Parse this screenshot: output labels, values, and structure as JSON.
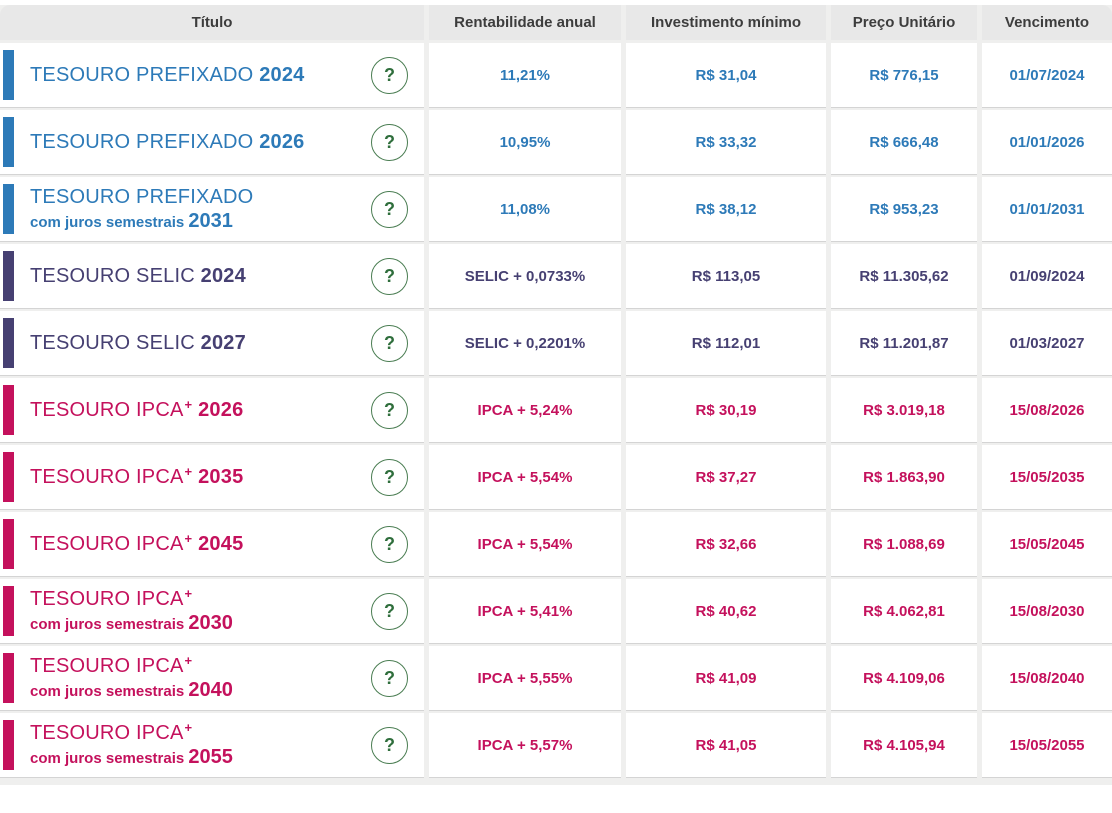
{
  "table": {
    "columns": [
      "Título",
      "Rentabilidade anual",
      "Investimento mínimo",
      "Preço Unitário",
      "Vencimento"
    ],
    "help_symbol": "?",
    "help_color": "#2f6e3c",
    "group_colors": {
      "prefixado": "#2d7ab8",
      "selic": "#464072",
      "ipca": "#c4115c"
    },
    "rows": [
      {
        "group": "prefixado",
        "name": "TESOURO PREFIXADO",
        "sup": "",
        "sub": "",
        "year": "2024",
        "rate": "11,21%",
        "min_investment": "R$ 31,04",
        "unit_price": "R$ 776,15",
        "maturity": "01/07/2024"
      },
      {
        "group": "prefixado",
        "name": "TESOURO PREFIXADO",
        "sup": "",
        "sub": "",
        "year": "2026",
        "rate": "10,95%",
        "min_investment": "R$ 33,32",
        "unit_price": "R$ 666,48",
        "maturity": "01/01/2026"
      },
      {
        "group": "prefixado",
        "name": "TESOURO PREFIXADO",
        "sup": "",
        "sub": "com juros semestrais",
        "year": "2031",
        "rate": "11,08%",
        "min_investment": "R$ 38,12",
        "unit_price": "R$ 953,23",
        "maturity": "01/01/2031"
      },
      {
        "group": "selic",
        "name": "TESOURO SELIC",
        "sup": "",
        "sub": "",
        "year": "2024",
        "rate": "SELIC + 0,0733%",
        "min_investment": "R$ 113,05",
        "unit_price": "R$ 11.305,62",
        "maturity": "01/09/2024"
      },
      {
        "group": "selic",
        "name": "TESOURO SELIC",
        "sup": "",
        "sub": "",
        "year": "2027",
        "rate": "SELIC + 0,2201%",
        "min_investment": "R$ 112,01",
        "unit_price": "R$ 11.201,87",
        "maturity": "01/03/2027"
      },
      {
        "group": "ipca",
        "name": "TESOURO IPCA",
        "sup": "+",
        "sub": "",
        "year": "2026",
        "rate": "IPCA + 5,24%",
        "min_investment": "R$ 30,19",
        "unit_price": "R$ 3.019,18",
        "maturity": "15/08/2026"
      },
      {
        "group": "ipca",
        "name": "TESOURO IPCA",
        "sup": "+",
        "sub": "",
        "year": "2035",
        "rate": "IPCA + 5,54%",
        "min_investment": "R$ 37,27",
        "unit_price": "R$ 1.863,90",
        "maturity": "15/05/2035"
      },
      {
        "group": "ipca",
        "name": "TESOURO IPCA",
        "sup": "+",
        "sub": "",
        "year": "2045",
        "rate": "IPCA + 5,54%",
        "min_investment": "R$ 32,66",
        "unit_price": "R$ 1.088,69",
        "maturity": "15/05/2045"
      },
      {
        "group": "ipca",
        "name": "TESOURO IPCA",
        "sup": "+",
        "sub": "com juros semestrais",
        "year": "2030",
        "rate": "IPCA + 5,41%",
        "min_investment": "R$ 40,62",
        "unit_price": "R$ 4.062,81",
        "maturity": "15/08/2030"
      },
      {
        "group": "ipca",
        "name": "TESOURO IPCA",
        "sup": "+",
        "sub": "com juros semestrais",
        "year": "2040",
        "rate": "IPCA + 5,55%",
        "min_investment": "R$ 41,09",
        "unit_price": "R$ 4.109,06",
        "maturity": "15/08/2040"
      },
      {
        "group": "ipca",
        "name": "TESOURO IPCA",
        "sup": "+",
        "sub": "com juros semestrais",
        "year": "2055",
        "rate": "IPCA + 5,57%",
        "min_investment": "R$ 41,05",
        "unit_price": "R$ 4.105,94",
        "maturity": "15/05/2055"
      }
    ]
  }
}
